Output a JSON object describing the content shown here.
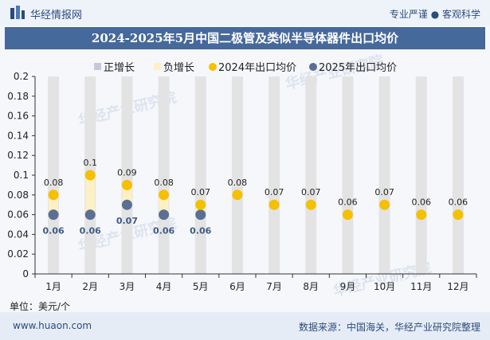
{
  "header": {
    "brand": "华经情报网",
    "slogan": "专业严谨 ● 客观科学"
  },
  "chart_data": {
    "type": "scatter",
    "title": "2024-2025年5月中国二极管及类似半导体器件出口均价",
    "categories": [
      "1月",
      "2月",
      "3月",
      "4月",
      "5月",
      "6月",
      "7月",
      "8月",
      "9月",
      "10月",
      "11月",
      "12月"
    ],
    "y_ticks": [
      "0",
      "0.02",
      "0.04",
      "0.06",
      "0.08",
      "0.1",
      "0.12",
      "0.14",
      "0.16",
      "0.18",
      "0.2"
    ],
    "ylim": [
      0,
      0.2
    ],
    "legend": [
      "正增长",
      "负增长",
      "2024年出口均价",
      "2025年出口均价"
    ],
    "legend_position": "top",
    "series": [
      {
        "name": "2024年出口均价",
        "color": "#f5c000",
        "values": [
          0.08,
          0.1,
          0.09,
          0.08,
          0.07,
          0.08,
          0.07,
          0.07,
          0.06,
          0.07,
          0.06,
          0.06
        ]
      },
      {
        "name": "2025年出口均价",
        "color": "#5a6f93",
        "values": [
          0.06,
          0.06,
          0.07,
          0.06,
          0.06
        ]
      }
    ],
    "positive_color": "#c6cad6",
    "negative_color": "#fdf0c4",
    "unit": "单位：美元/个",
    "watermark": "华经产业研究院"
  },
  "footer": {
    "left": "www.huaon.com",
    "right": "数据来源：中国海关，华经产业研究院整理"
  }
}
